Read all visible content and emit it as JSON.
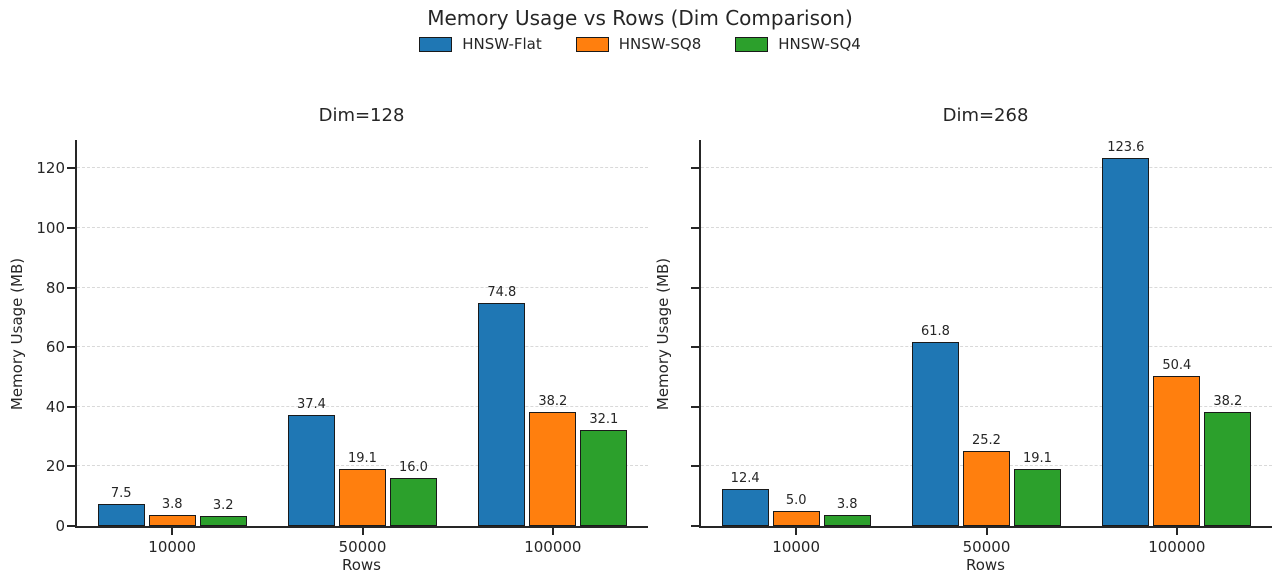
{
  "chart_data": {
    "type": "bar",
    "title": "Memory Usage vs Rows (Dim Comparison)",
    "categories": [
      "10000",
      "50000",
      "100000"
    ],
    "xlabel": "Rows",
    "ylabel": "Memory Usage (MB)",
    "ylim": [
      0,
      129.5
    ],
    "yticks": [
      0,
      20,
      40,
      60,
      80,
      100,
      120
    ],
    "grid": "horizontal-dashed",
    "bar_edge_color": "#1a1a1a",
    "legend": {
      "position": "top-center",
      "entries": [
        {
          "label": "HNSW-Flat",
          "color": "#1f77b4"
        },
        {
          "label": "HNSW-SQ8",
          "color": "#ff7f0e"
        },
        {
          "label": "HNSW-SQ4",
          "color": "#2ca02c"
        }
      ]
    },
    "subplots": [
      {
        "title": "Dim=128",
        "show_ytick_labels": true,
        "series": [
          {
            "name": "HNSW-Flat",
            "color": "#1f77b4",
            "values": [
              7.5,
              37.4,
              74.8
            ]
          },
          {
            "name": "HNSW-SQ8",
            "color": "#ff7f0e",
            "values": [
              3.8,
              19.1,
              38.2
            ]
          },
          {
            "name": "HNSW-SQ4",
            "color": "#2ca02c",
            "values": [
              3.2,
              16.0,
              32.1
            ]
          }
        ]
      },
      {
        "title": "Dim=268",
        "show_ytick_labels": false,
        "series": [
          {
            "name": "HNSW-Flat",
            "color": "#1f77b4",
            "values": [
              12.4,
              61.8,
              123.6
            ]
          },
          {
            "name": "HNSW-SQ8",
            "color": "#ff7f0e",
            "values": [
              5.0,
              25.2,
              50.4
            ]
          },
          {
            "name": "HNSW-SQ4",
            "color": "#2ca02c",
            "values": [
              3.8,
              19.1,
              38.2
            ]
          }
        ]
      }
    ]
  }
}
